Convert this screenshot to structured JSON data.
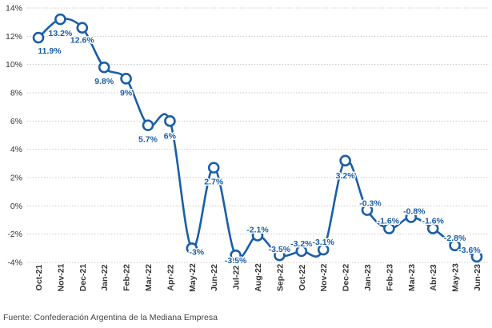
{
  "chart_data": {
    "type": "line",
    "title": "",
    "xlabel": "",
    "ylabel": "",
    "categories": [
      "Oct-21",
      "Nov-21",
      "Dec-21",
      "Jan-22",
      "Feb-22",
      "Mar-22",
      "Apr-22",
      "May-22",
      "Jun-22",
      "Jul-22",
      "Aug-22",
      "Sep-22",
      "Oct-22",
      "Nov-22",
      "Dec-22",
      "Jan-23",
      "Feb-23",
      "Mar-23",
      "Abr-23",
      "May-23",
      "Jun-23"
    ],
    "values": [
      11.9,
      13.2,
      12.6,
      9.8,
      9.0,
      5.7,
      6.0,
      -3.0,
      2.7,
      -3.5,
      -2.1,
      -3.5,
      -3.2,
      -3.1,
      3.2,
      -0.3,
      -1.6,
      -0.8,
      -1.6,
      -2.8,
      -3.6
    ],
    "data_labels": [
      "11.9%",
      "13.2%",
      "12.6%",
      "9.8%",
      "9%",
      "5.7%",
      "6%",
      "-3%",
      "2.7%",
      "-3.5%",
      "-2.1%",
      "-3.5%",
      "-3.2%",
      "-3.1%",
      "3.2%",
      "-0.3%",
      "-1.6%",
      "-0.8%",
      "-1.6%",
      "-2.8%",
      "-3.6%"
    ],
    "y_ticks": [
      {
        "value": 14,
        "label": "14%"
      },
      {
        "value": 12,
        "label": "12%"
      },
      {
        "value": 10,
        "label": "10%"
      },
      {
        "value": 8,
        "label": "8%"
      },
      {
        "value": 6,
        "label": "6%"
      },
      {
        "value": 4,
        "label": "4%"
      },
      {
        "value": 2,
        "label": "2%"
      },
      {
        "value": 0,
        "label": "0%"
      },
      {
        "value": -2,
        "label": "-2%"
      },
      {
        "value": -4,
        "label": "-4%"
      }
    ],
    "ylim": [
      -4,
      14
    ],
    "grid": "horizontal-dotted",
    "line_style": "smooth",
    "colors": {
      "line": "#1a5ea8",
      "marker_fill": "#ffffff",
      "label": "#1a5ea8",
      "grid": "#c8c8c8",
      "axis_text": "#333333"
    }
  },
  "source_text": "Fuente: Confederación Argentina de la Mediana Empresa"
}
